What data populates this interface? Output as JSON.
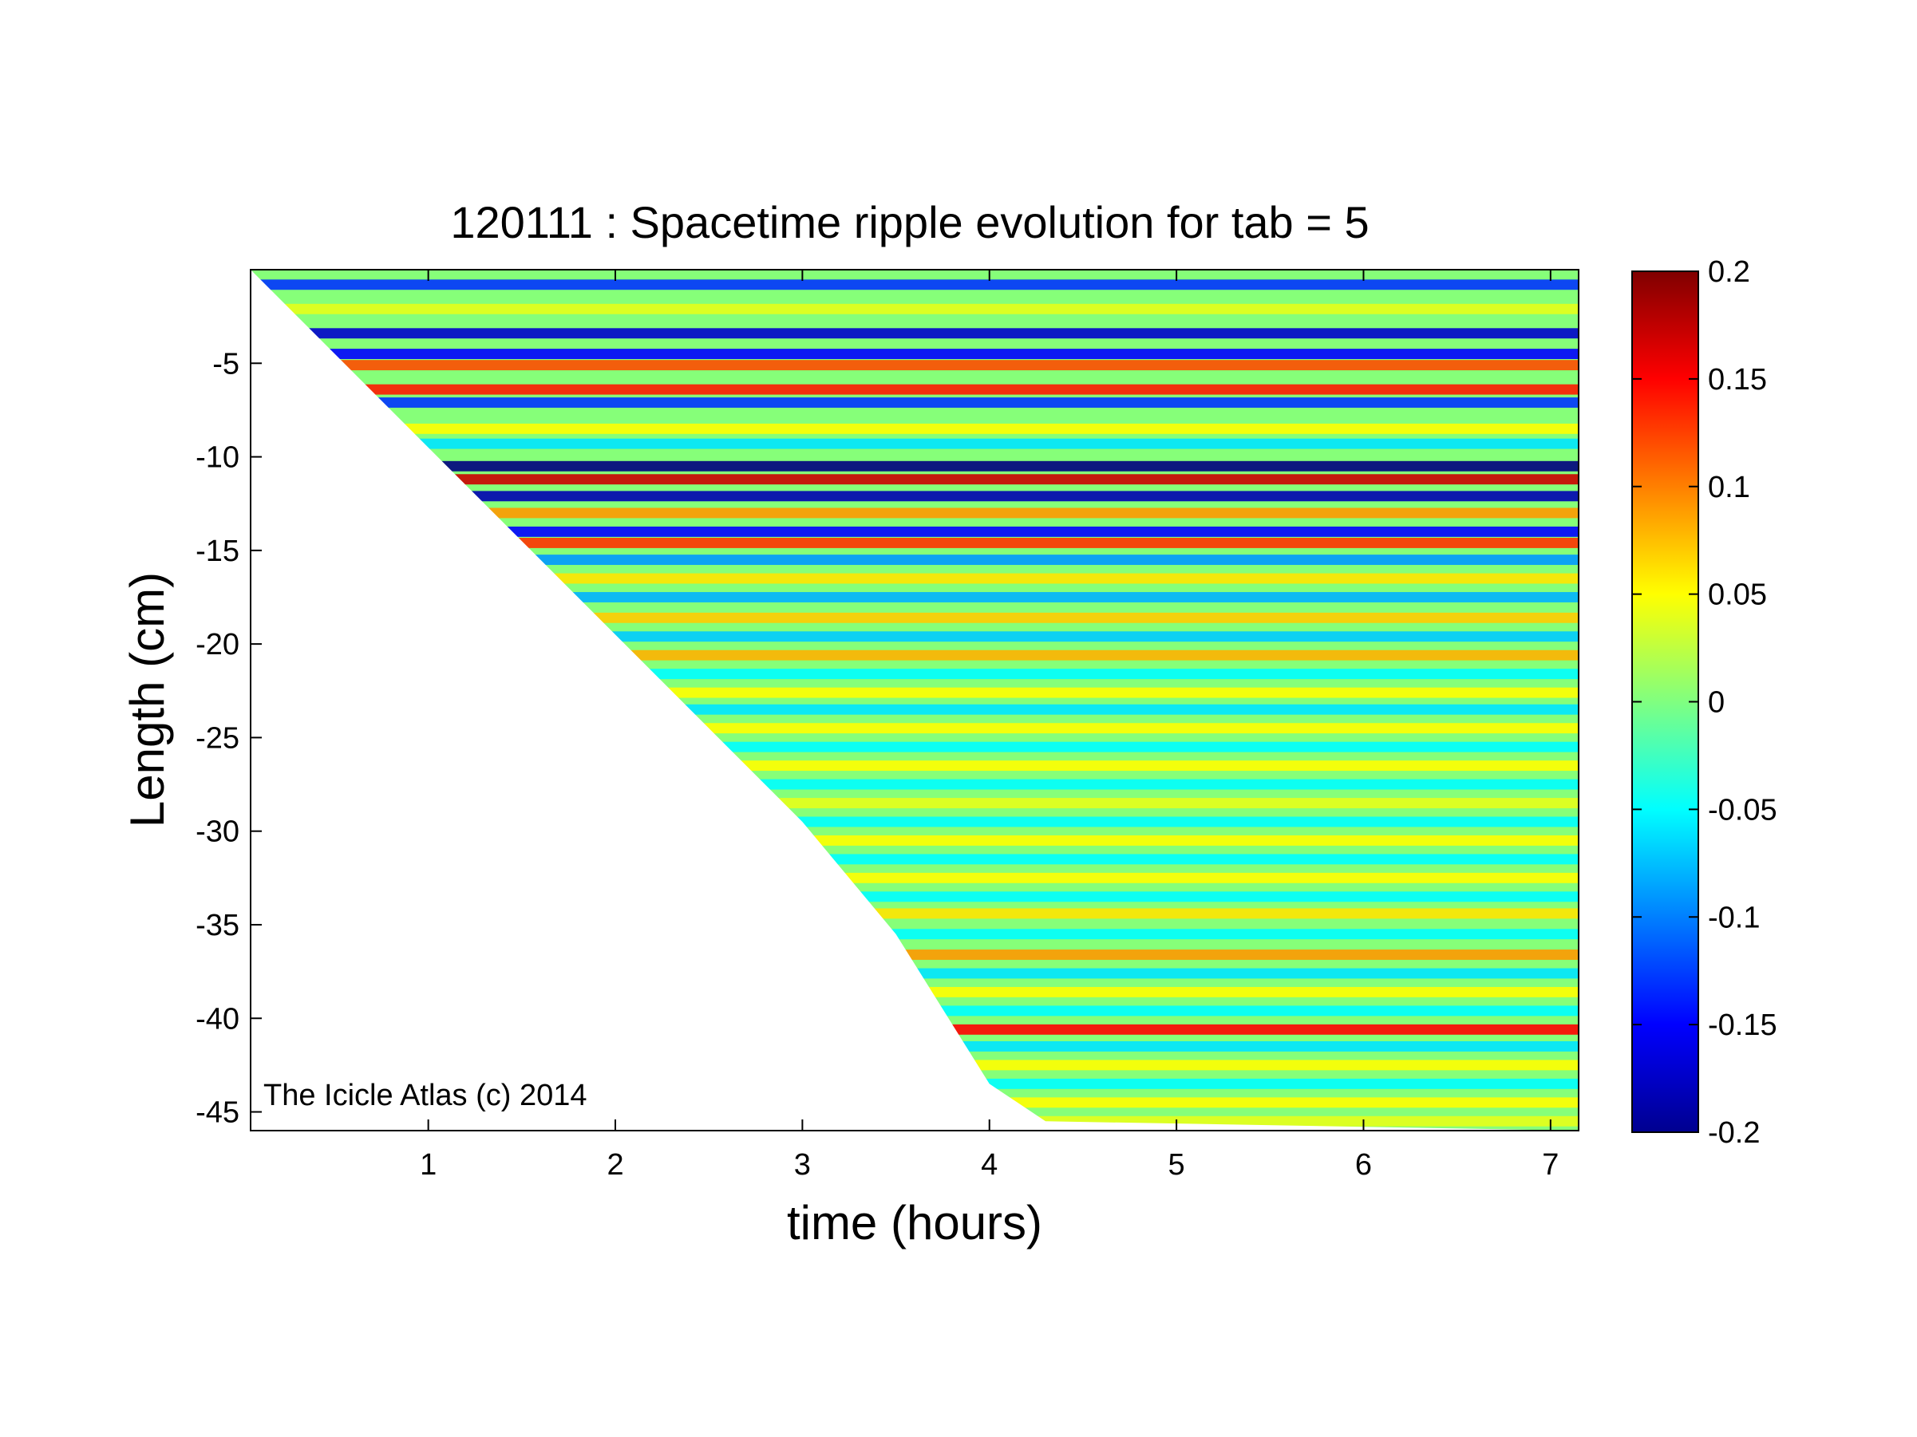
{
  "chart_data": {
    "type": "heatmap",
    "title": "120111 : Spacetime ripple evolution for tab = 5",
    "xlabel": "time (hours)",
    "ylabel": "Length (cm)",
    "xlim": [
      0.05,
      7.15
    ],
    "ylim": [
      -46,
      0
    ],
    "xticks": [
      1,
      2,
      3,
      4,
      5,
      6,
      7
    ],
    "yticks": [
      -5,
      -10,
      -15,
      -20,
      -25,
      -30,
      -35,
      -40,
      -45
    ],
    "annotation": "The Icicle Atlas (c) 2014",
    "colormap": "jet",
    "colorbar": {
      "clim": [
        -0.2,
        0.2
      ],
      "ticks": [
        0.2,
        0.15,
        0.1,
        0.05,
        0,
        -0.05,
        -0.1,
        -0.15,
        -0.2
      ],
      "tick_labels": [
        "0.2",
        "0.15",
        "0.1",
        "0.05",
        "0",
        "-0.05",
        "-0.1",
        "-0.15",
        "-0.2"
      ]
    },
    "grid": false,
    "data_front": {
      "description_t": [
        0.05,
        1.0,
        2.0,
        3.0,
        3.5,
        4.0,
        4.3,
        7.15
      ],
      "min_length": [
        0,
        -9.5,
        -19.5,
        -29.5,
        -35.5,
        -43.5,
        -45.5,
        -46
      ]
    },
    "bands": [
      {
        "length": -0.8,
        "amplitude": -0.13
      },
      {
        "length": -2.1,
        "amplitude": 0.04
      },
      {
        "length": -3.4,
        "amplitude": -0.17
      },
      {
        "length": -4.5,
        "amplitude": -0.15
      },
      {
        "length": -5.1,
        "amplitude": 0.12
      },
      {
        "length": -6.4,
        "amplitude": 0.14
      },
      {
        "length": -7.1,
        "amplitude": -0.13
      },
      {
        "length": -8.5,
        "amplitude": 0.05
      },
      {
        "length": -9.3,
        "amplitude": -0.06
      },
      {
        "length": -10.5,
        "amplitude": -0.2
      },
      {
        "length": -11.2,
        "amplitude": 0.17
      },
      {
        "length": -12.1,
        "amplitude": -0.18
      },
      {
        "length": -13.0,
        "amplitude": 0.09
      },
      {
        "length": -14.0,
        "amplitude": -0.15
      },
      {
        "length": -14.6,
        "amplitude": 0.13
      },
      {
        "length": -15.5,
        "amplitude": -0.09
      },
      {
        "length": -16.5,
        "amplitude": 0.06
      },
      {
        "length": -17.5,
        "amplitude": -0.08
      },
      {
        "length": -18.6,
        "amplitude": 0.07
      },
      {
        "length": -19.6,
        "amplitude": -0.07
      },
      {
        "length": -20.6,
        "amplitude": 0.08
      },
      {
        "length": -21.6,
        "amplitude": -0.05
      },
      {
        "length": -22.6,
        "amplitude": 0.05
      },
      {
        "length": -23.5,
        "amplitude": -0.06
      },
      {
        "length": -24.5,
        "amplitude": 0.05
      },
      {
        "length": -25.5,
        "amplitude": -0.05
      },
      {
        "length": -26.5,
        "amplitude": 0.05
      },
      {
        "length": -27.5,
        "amplitude": -0.05
      },
      {
        "length": -28.5,
        "amplitude": 0.04
      },
      {
        "length": -29.5,
        "amplitude": -0.05
      },
      {
        "length": -30.5,
        "amplitude": 0.05
      },
      {
        "length": -31.5,
        "amplitude": -0.05
      },
      {
        "length": -32.5,
        "amplitude": 0.05
      },
      {
        "length": -33.5,
        "amplitude": -0.05
      },
      {
        "length": -34.4,
        "amplitude": 0.06
      },
      {
        "length": -35.5,
        "amplitude": -0.05
      },
      {
        "length": -36.6,
        "amplitude": 0.09
      },
      {
        "length": -37.6,
        "amplitude": -0.06
      },
      {
        "length": -38.6,
        "amplitude": 0.05
      },
      {
        "length": -39.6,
        "amplitude": -0.05
      },
      {
        "length": -40.6,
        "amplitude": 0.15
      },
      {
        "length": -41.5,
        "amplitude": -0.06
      },
      {
        "length": -42.5,
        "amplitude": 0.05
      },
      {
        "length": -43.5,
        "amplitude": -0.05
      },
      {
        "length": -44.5,
        "amplitude": 0.05
      },
      {
        "length": -45.5,
        "amplitude": 0.04
      }
    ]
  }
}
